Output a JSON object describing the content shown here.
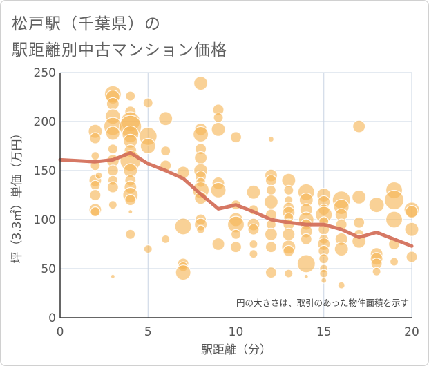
{
  "title": {
    "line1": "松戸駅（千葉県）の",
    "line2": "駅距離別中古マンション価格"
  },
  "chart_data": {
    "type": "scatter",
    "xlabel": "駅距離（分）",
    "ylabel": "坪（3.3㎡）単価（万円）",
    "xlim": [
      0,
      20
    ],
    "ylim": [
      0,
      250
    ],
    "x_ticks": [
      "0",
      "5",
      "10",
      "15",
      "20"
    ],
    "y_ticks": [
      "0",
      "50",
      "100",
      "150",
      "200",
      "250"
    ],
    "grid": true,
    "annotation": "円の大きさは、取引のあった物件面積を示す",
    "bubble_color": "#f5b556",
    "line_color": "#d4715c",
    "points": [
      {
        "x": 2,
        "y": 190,
        "s": 10
      },
      {
        "x": 2,
        "y": 183,
        "s": 8
      },
      {
        "x": 2,
        "y": 165,
        "s": 6
      },
      {
        "x": 2,
        "y": 155,
        "s": 7
      },
      {
        "x": 2,
        "y": 140,
        "s": 9
      },
      {
        "x": 2,
        "y": 135,
        "s": 7
      },
      {
        "x": 2,
        "y": 125,
        "s": 8
      },
      {
        "x": 2,
        "y": 110,
        "s": 9
      },
      {
        "x": 2,
        "y": 108,
        "s": 7
      },
      {
        "x": 2.2,
        "y": 145,
        "s": 5
      },
      {
        "x": 3,
        "y": 228,
        "s": 12
      },
      {
        "x": 3,
        "y": 225,
        "s": 10
      },
      {
        "x": 3,
        "y": 218,
        "s": 9
      },
      {
        "x": 3,
        "y": 205,
        "s": 11
      },
      {
        "x": 3,
        "y": 195,
        "s": 13
      },
      {
        "x": 3,
        "y": 188,
        "s": 10
      },
      {
        "x": 3,
        "y": 172,
        "s": 7
      },
      {
        "x": 3,
        "y": 160,
        "s": 9
      },
      {
        "x": 3,
        "y": 150,
        "s": 8
      },
      {
        "x": 3,
        "y": 140,
        "s": 7
      },
      {
        "x": 3,
        "y": 133,
        "s": 8
      },
      {
        "x": 3,
        "y": 115,
        "s": 6
      },
      {
        "x": 3,
        "y": 42,
        "s": 3
      },
      {
        "x": 4,
        "y": 226,
        "s": 7
      },
      {
        "x": 4,
        "y": 210,
        "s": 8
      },
      {
        "x": 4,
        "y": 200,
        "s": 14
      },
      {
        "x": 4,
        "y": 195,
        "s": 16
      },
      {
        "x": 4,
        "y": 187,
        "s": 12
      },
      {
        "x": 4,
        "y": 180,
        "s": 10
      },
      {
        "x": 4,
        "y": 170,
        "s": 9
      },
      {
        "x": 4,
        "y": 160,
        "s": 15
      },
      {
        "x": 4,
        "y": 150,
        "s": 10
      },
      {
        "x": 4,
        "y": 140,
        "s": 8
      },
      {
        "x": 4,
        "y": 133,
        "s": 9
      },
      {
        "x": 4,
        "y": 125,
        "s": 11
      },
      {
        "x": 4,
        "y": 120,
        "s": 8
      },
      {
        "x": 4,
        "y": 108,
        "s": 3
      },
      {
        "x": 4,
        "y": 85,
        "s": 7
      },
      {
        "x": 5,
        "y": 219,
        "s": 7
      },
      {
        "x": 5,
        "y": 185,
        "s": 13
      },
      {
        "x": 5,
        "y": 175,
        "s": 11
      },
      {
        "x": 5,
        "y": 70,
        "s": 6
      },
      {
        "x": 6,
        "y": 203,
        "s": 10
      },
      {
        "x": 6,
        "y": 170,
        "s": 7
      },
      {
        "x": 6,
        "y": 155,
        "s": 8
      },
      {
        "x": 6,
        "y": 80,
        "s": 6
      },
      {
        "x": 7,
        "y": 148,
        "s": 9
      },
      {
        "x": 7,
        "y": 93,
        "s": 12
      },
      {
        "x": 7,
        "y": 55,
        "s": 8
      },
      {
        "x": 7,
        "y": 52,
        "s": 7
      },
      {
        "x": 7,
        "y": 46,
        "s": 11
      },
      {
        "x": 8,
        "y": 239,
        "s": 10
      },
      {
        "x": 8,
        "y": 192,
        "s": 9
      },
      {
        "x": 8,
        "y": 187,
        "s": 11
      },
      {
        "x": 8,
        "y": 172,
        "s": 8
      },
      {
        "x": 8,
        "y": 163,
        "s": 9
      },
      {
        "x": 8,
        "y": 150,
        "s": 10
      },
      {
        "x": 8,
        "y": 144,
        "s": 8
      },
      {
        "x": 8,
        "y": 138,
        "s": 7
      },
      {
        "x": 8,
        "y": 130,
        "s": 12
      },
      {
        "x": 8,
        "y": 122,
        "s": 9
      },
      {
        "x": 8,
        "y": 100,
        "s": 8
      },
      {
        "x": 8,
        "y": 95,
        "s": 9
      },
      {
        "x": 8,
        "y": 90,
        "s": 6
      },
      {
        "x": 9,
        "y": 212,
        "s": 8
      },
      {
        "x": 9,
        "y": 204,
        "s": 7
      },
      {
        "x": 9,
        "y": 192,
        "s": 10
      },
      {
        "x": 9,
        "y": 137,
        "s": 9
      },
      {
        "x": 9,
        "y": 130,
        "s": 11
      },
      {
        "x": 9,
        "y": 75,
        "s": 9
      },
      {
        "x": 10,
        "y": 184,
        "s": 8
      },
      {
        "x": 10,
        "y": 115,
        "s": 7
      },
      {
        "x": 10,
        "y": 100,
        "s": 10
      },
      {
        "x": 10,
        "y": 95,
        "s": 12
      },
      {
        "x": 10,
        "y": 85,
        "s": 7
      },
      {
        "x": 10,
        "y": 72,
        "s": 8
      },
      {
        "x": 11,
        "y": 128,
        "s": 10
      },
      {
        "x": 11,
        "y": 110,
        "s": 7
      },
      {
        "x": 11,
        "y": 95,
        "s": 9
      },
      {
        "x": 11,
        "y": 90,
        "s": 8
      },
      {
        "x": 11,
        "y": 75,
        "s": 6
      },
      {
        "x": 11,
        "y": 65,
        "s": 6
      },
      {
        "x": 12,
        "y": 182,
        "s": 4
      },
      {
        "x": 12,
        "y": 145,
        "s": 9
      },
      {
        "x": 12,
        "y": 140,
        "s": 8
      },
      {
        "x": 12,
        "y": 130,
        "s": 7
      },
      {
        "x": 12,
        "y": 118,
        "s": 10
      },
      {
        "x": 12,
        "y": 105,
        "s": 8
      },
      {
        "x": 12,
        "y": 95,
        "s": 7
      },
      {
        "x": 12,
        "y": 85,
        "s": 9
      },
      {
        "x": 12,
        "y": 72,
        "s": 8
      },
      {
        "x": 12,
        "y": 46,
        "s": 8
      },
      {
        "x": 13,
        "y": 140,
        "s": 10
      },
      {
        "x": 13,
        "y": 130,
        "s": 7
      },
      {
        "x": 13,
        "y": 120,
        "s": 6
      },
      {
        "x": 13,
        "y": 112,
        "s": 8
      },
      {
        "x": 13,
        "y": 107,
        "s": 9
      },
      {
        "x": 13,
        "y": 102,
        "s": 7
      },
      {
        "x": 13,
        "y": 95,
        "s": 8
      },
      {
        "x": 13,
        "y": 85,
        "s": 9
      },
      {
        "x": 13,
        "y": 72,
        "s": 10
      },
      {
        "x": 13,
        "y": 68,
        "s": 8
      },
      {
        "x": 13,
        "y": 45,
        "s": 6
      },
      {
        "x": 14,
        "y": 128,
        "s": 12
      },
      {
        "x": 14,
        "y": 120,
        "s": 10
      },
      {
        "x": 14,
        "y": 110,
        "s": 9
      },
      {
        "x": 14,
        "y": 100,
        "s": 11
      },
      {
        "x": 14,
        "y": 95,
        "s": 8
      },
      {
        "x": 14,
        "y": 88,
        "s": 9
      },
      {
        "x": 14,
        "y": 80,
        "s": 8
      },
      {
        "x": 14,
        "y": 55,
        "s": 13
      },
      {
        "x": 14,
        "y": 42,
        "s": 3
      },
      {
        "x": 15,
        "y": 125,
        "s": 10
      },
      {
        "x": 15,
        "y": 118,
        "s": 9
      },
      {
        "x": 15,
        "y": 110,
        "s": 8
      },
      {
        "x": 15,
        "y": 105,
        "s": 12
      },
      {
        "x": 15,
        "y": 98,
        "s": 7
      },
      {
        "x": 15,
        "y": 90,
        "s": 8
      },
      {
        "x": 15,
        "y": 80,
        "s": 7
      },
      {
        "x": 15,
        "y": 75,
        "s": 9
      },
      {
        "x": 15,
        "y": 68,
        "s": 8
      },
      {
        "x": 15,
        "y": 60,
        "s": 7
      },
      {
        "x": 15,
        "y": 50,
        "s": 6
      },
      {
        "x": 15,
        "y": 45,
        "s": 6
      },
      {
        "x": 15,
        "y": 38,
        "s": 4
      },
      {
        "x": 16,
        "y": 120,
        "s": 13
      },
      {
        "x": 16,
        "y": 113,
        "s": 11
      },
      {
        "x": 16,
        "y": 105,
        "s": 9
      },
      {
        "x": 16,
        "y": 95,
        "s": 8
      },
      {
        "x": 16,
        "y": 80,
        "s": 9
      },
      {
        "x": 16,
        "y": 70,
        "s": 10
      },
      {
        "x": 16,
        "y": 33,
        "s": 5
      },
      {
        "x": 17,
        "y": 195,
        "s": 9
      },
      {
        "x": 17,
        "y": 123,
        "s": 10
      },
      {
        "x": 17,
        "y": 97,
        "s": 8
      },
      {
        "x": 17,
        "y": 85,
        "s": 7
      },
      {
        "x": 17,
        "y": 78,
        "s": 10
      },
      {
        "x": 18,
        "y": 115,
        "s": 11
      },
      {
        "x": 18,
        "y": 65,
        "s": 9
      },
      {
        "x": 18,
        "y": 60,
        "s": 9
      },
      {
        "x": 18,
        "y": 55,
        "s": 8
      },
      {
        "x": 18,
        "y": 47,
        "s": 6
      },
      {
        "x": 19,
        "y": 130,
        "s": 12
      },
      {
        "x": 19,
        "y": 120,
        "s": 14
      },
      {
        "x": 19,
        "y": 100,
        "s": 12
      },
      {
        "x": 19,
        "y": 75,
        "s": 8
      },
      {
        "x": 19,
        "y": 57,
        "s": 6
      },
      {
        "x": 20,
        "y": 110,
        "s": 11
      },
      {
        "x": 20,
        "y": 108,
        "s": 9
      },
      {
        "x": 20,
        "y": 90,
        "s": 10
      },
      {
        "x": 20,
        "y": 62,
        "s": 8
      }
    ],
    "trend_line": {
      "x": [
        0,
        1,
        2,
        3,
        4,
        5,
        6,
        7,
        8,
        9,
        10,
        11,
        12,
        13,
        14,
        15,
        16,
        17,
        18,
        19,
        20
      ],
      "y": [
        161,
        160,
        159,
        161,
        168,
        157,
        150,
        142,
        126,
        111,
        115,
        108,
        100,
        97,
        95,
        95,
        90,
        82,
        87,
        80,
        73
      ]
    }
  }
}
